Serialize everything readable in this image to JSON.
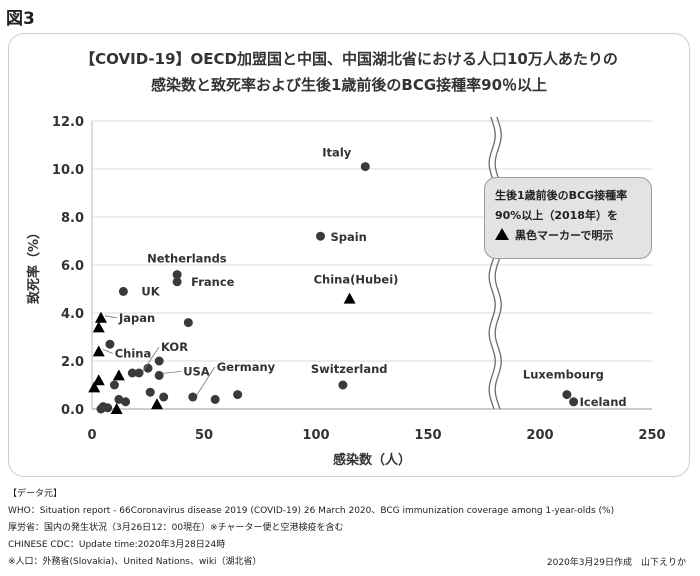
{
  "figure_label": "図3",
  "chart_data": {
    "type": "scatter",
    "title_line1": "【COVID-19】OECD加盟国と中国、中国湖北省における人口10万人あたりの",
    "title_line2": "感染数と致死率および生後1歳前後のBCG接種率90％以上",
    "xlabel": "感染数（人）",
    "ylabel": "致死率（%）",
    "xlim": [
      0,
      250
    ],
    "ylim": [
      0,
      12
    ],
    "x_ticks": [
      "0",
      "50",
      "100",
      "150",
      "200",
      "250"
    ],
    "y_ticks": [
      "0.0",
      "2.0",
      "4.0",
      "6.0",
      "8.0",
      "10.0",
      "12.0"
    ],
    "axis_break_x": 180,
    "grid": "horizontal",
    "legend_text": "生後1歳前後のBCG接種率90%以上（2018年）を",
    "legend_marker_text": "黒色マーカーで明示",
    "points": [
      {
        "x": 122,
        "y": 10.1,
        "marker": "circle",
        "label": "Italy"
      },
      {
        "x": 102,
        "y": 7.2,
        "marker": "circle",
        "label": "Spain"
      },
      {
        "x": 38,
        "y": 5.6,
        "marker": "circle",
        "label": "Netherlands"
      },
      {
        "x": 38,
        "y": 5.3,
        "marker": "circle",
        "label": "France"
      },
      {
        "x": 14,
        "y": 4.9,
        "marker": "circle",
        "label": "UK"
      },
      {
        "x": 115,
        "y": 4.6,
        "marker": "triangle",
        "label": "China(Hubei)"
      },
      {
        "x": 4,
        "y": 3.8,
        "marker": "triangle",
        "label": "Japan"
      },
      {
        "x": 43,
        "y": 3.6,
        "marker": "circle",
        "label": ""
      },
      {
        "x": 3,
        "y": 3.4,
        "marker": "triangle",
        "label": ""
      },
      {
        "x": 8,
        "y": 2.7,
        "marker": "circle",
        "label": ""
      },
      {
        "x": 3,
        "y": 2.4,
        "marker": "triangle",
        "label": "China"
      },
      {
        "x": 30,
        "y": 2.0,
        "marker": "circle",
        "label": ""
      },
      {
        "x": 25,
        "y": 1.7,
        "marker": "circle",
        "label": ""
      },
      {
        "x": 21,
        "y": 1.5,
        "marker": "circle",
        "label": "KOR"
      },
      {
        "x": 18,
        "y": 1.5,
        "marker": "circle",
        "label": ""
      },
      {
        "x": 12,
        "y": 1.4,
        "marker": "triangle",
        "label": ""
      },
      {
        "x": 30,
        "y": 1.4,
        "marker": "circle",
        "label": "USA"
      },
      {
        "x": 3,
        "y": 1.2,
        "marker": "triangle",
        "label": ""
      },
      {
        "x": 1,
        "y": 0.9,
        "marker": "triangle",
        "label": ""
      },
      {
        "x": 10,
        "y": 1.0,
        "marker": "circle",
        "label": ""
      },
      {
        "x": 112,
        "y": 1.0,
        "marker": "circle",
        "label": "Switzerland"
      },
      {
        "x": 26,
        "y": 0.7,
        "marker": "circle",
        "label": ""
      },
      {
        "x": 65,
        "y": 0.6,
        "marker": "circle",
        "label": ""
      },
      {
        "x": 45,
        "y": 0.5,
        "marker": "circle",
        "label": "Germany"
      },
      {
        "x": 32,
        "y": 0.5,
        "marker": "circle",
        "label": ""
      },
      {
        "x": 12,
        "y": 0.4,
        "marker": "circle",
        "label": ""
      },
      {
        "x": 15,
        "y": 0.3,
        "marker": "circle",
        "label": ""
      },
      {
        "x": 55,
        "y": 0.4,
        "marker": "circle",
        "label": ""
      },
      {
        "x": 212,
        "y": 0.6,
        "marker": "circle",
        "label": "Luxembourg"
      },
      {
        "x": 215,
        "y": 0.3,
        "marker": "circle",
        "label": "Iceland"
      },
      {
        "x": 29,
        "y": 0.2,
        "marker": "triangle",
        "label": ""
      },
      {
        "x": 5,
        "y": 0.1,
        "marker": "circle",
        "label": ""
      },
      {
        "x": 7,
        "y": 0.05,
        "marker": "circle",
        "label": ""
      },
      {
        "x": 4,
        "y": 0.0,
        "marker": "circle",
        "label": ""
      },
      {
        "x": 11,
        "y": 0.0,
        "marker": "triangle",
        "label": ""
      }
    ]
  },
  "notes": {
    "line1": "【データ元】",
    "line2": "WHO：Situation report - 66Coronavirus disease 2019 (COVID-19) 26 March 2020、BCG immunization coverage among 1-year-olds (%)",
    "line3": "厚労省：国内の発生状況（3月26日12：00現在）※チャーター便と空港検疫を含む",
    "line4": "CHINESE CDC：Update time:2020年3月28日24時",
    "line5": "※人口：外務省(Slovakia)、United Nations、wiki（湖北省）"
  },
  "credit": "2020年3月29日作成　山下えりか"
}
